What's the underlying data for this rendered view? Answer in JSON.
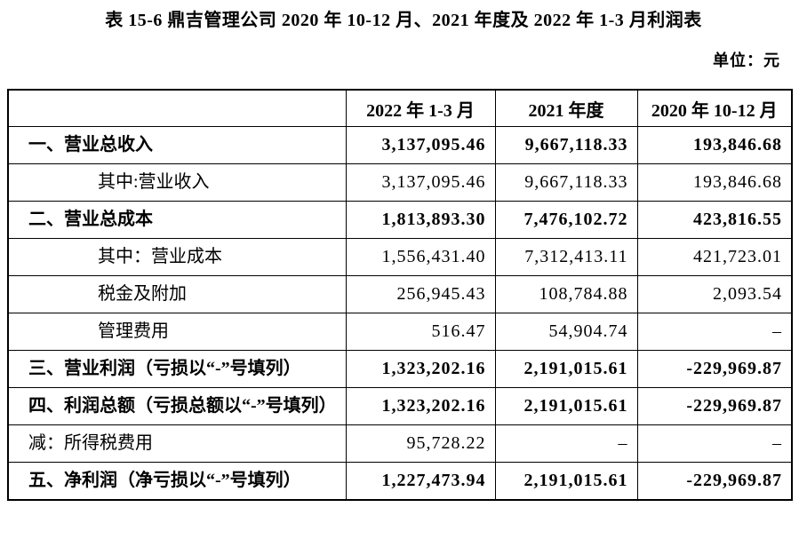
{
  "title": "表 15-6 鼎吉管理公司 2020 年 10-12 月、2021 年度及 2022 年 1-3 月利润表",
  "unit_label": "单位：元",
  "table": {
    "columns": [
      "",
      "2022 年 1-3 月",
      "2021 年度",
      "2020 年 10-12 月"
    ],
    "rows": [
      {
        "label": "一、营业总收入",
        "bold": true,
        "indent": false,
        "values": [
          "3,137,095.46",
          "9,667,118.33",
          "193,846.68"
        ]
      },
      {
        "label": "其中:营业收入",
        "bold": false,
        "indent": true,
        "values": [
          "3,137,095.46",
          "9,667,118.33",
          "193,846.68"
        ]
      },
      {
        "label": "二、营业总成本",
        "bold": true,
        "indent": false,
        "values": [
          "1,813,893.30",
          "7,476,102.72",
          "423,816.55"
        ]
      },
      {
        "label": "其中：营业成本",
        "bold": false,
        "indent": true,
        "values": [
          "1,556,431.40",
          "7,312,413.11",
          "421,723.01"
        ]
      },
      {
        "label": "税金及附加",
        "bold": false,
        "indent": true,
        "values": [
          "256,945.43",
          "108,784.88",
          "2,093.54"
        ]
      },
      {
        "label": "管理费用",
        "bold": false,
        "indent": true,
        "values": [
          "516.47",
          "54,904.74",
          "–"
        ]
      },
      {
        "label": "三、营业利润（亏损以“-”号填列）",
        "bold": true,
        "indent": false,
        "values": [
          "1,323,202.16",
          "2,191,015.61",
          "-229,969.87"
        ]
      },
      {
        "label": "四、利润总额（亏损总额以“-”号填列）",
        "bold": true,
        "indent": false,
        "values": [
          "1,323,202.16",
          "2,191,015.61",
          "-229,969.87"
        ]
      },
      {
        "label": "减：所得税费用",
        "bold": false,
        "indent": false,
        "values": [
          "95,728.22",
          "–",
          "–"
        ]
      },
      {
        "label": "五、净利润（净亏损以“-”号填列）",
        "bold": true,
        "indent": false,
        "values": [
          "1,227,473.94",
          "2,191,015.61",
          "-229,969.87"
        ]
      }
    ]
  }
}
